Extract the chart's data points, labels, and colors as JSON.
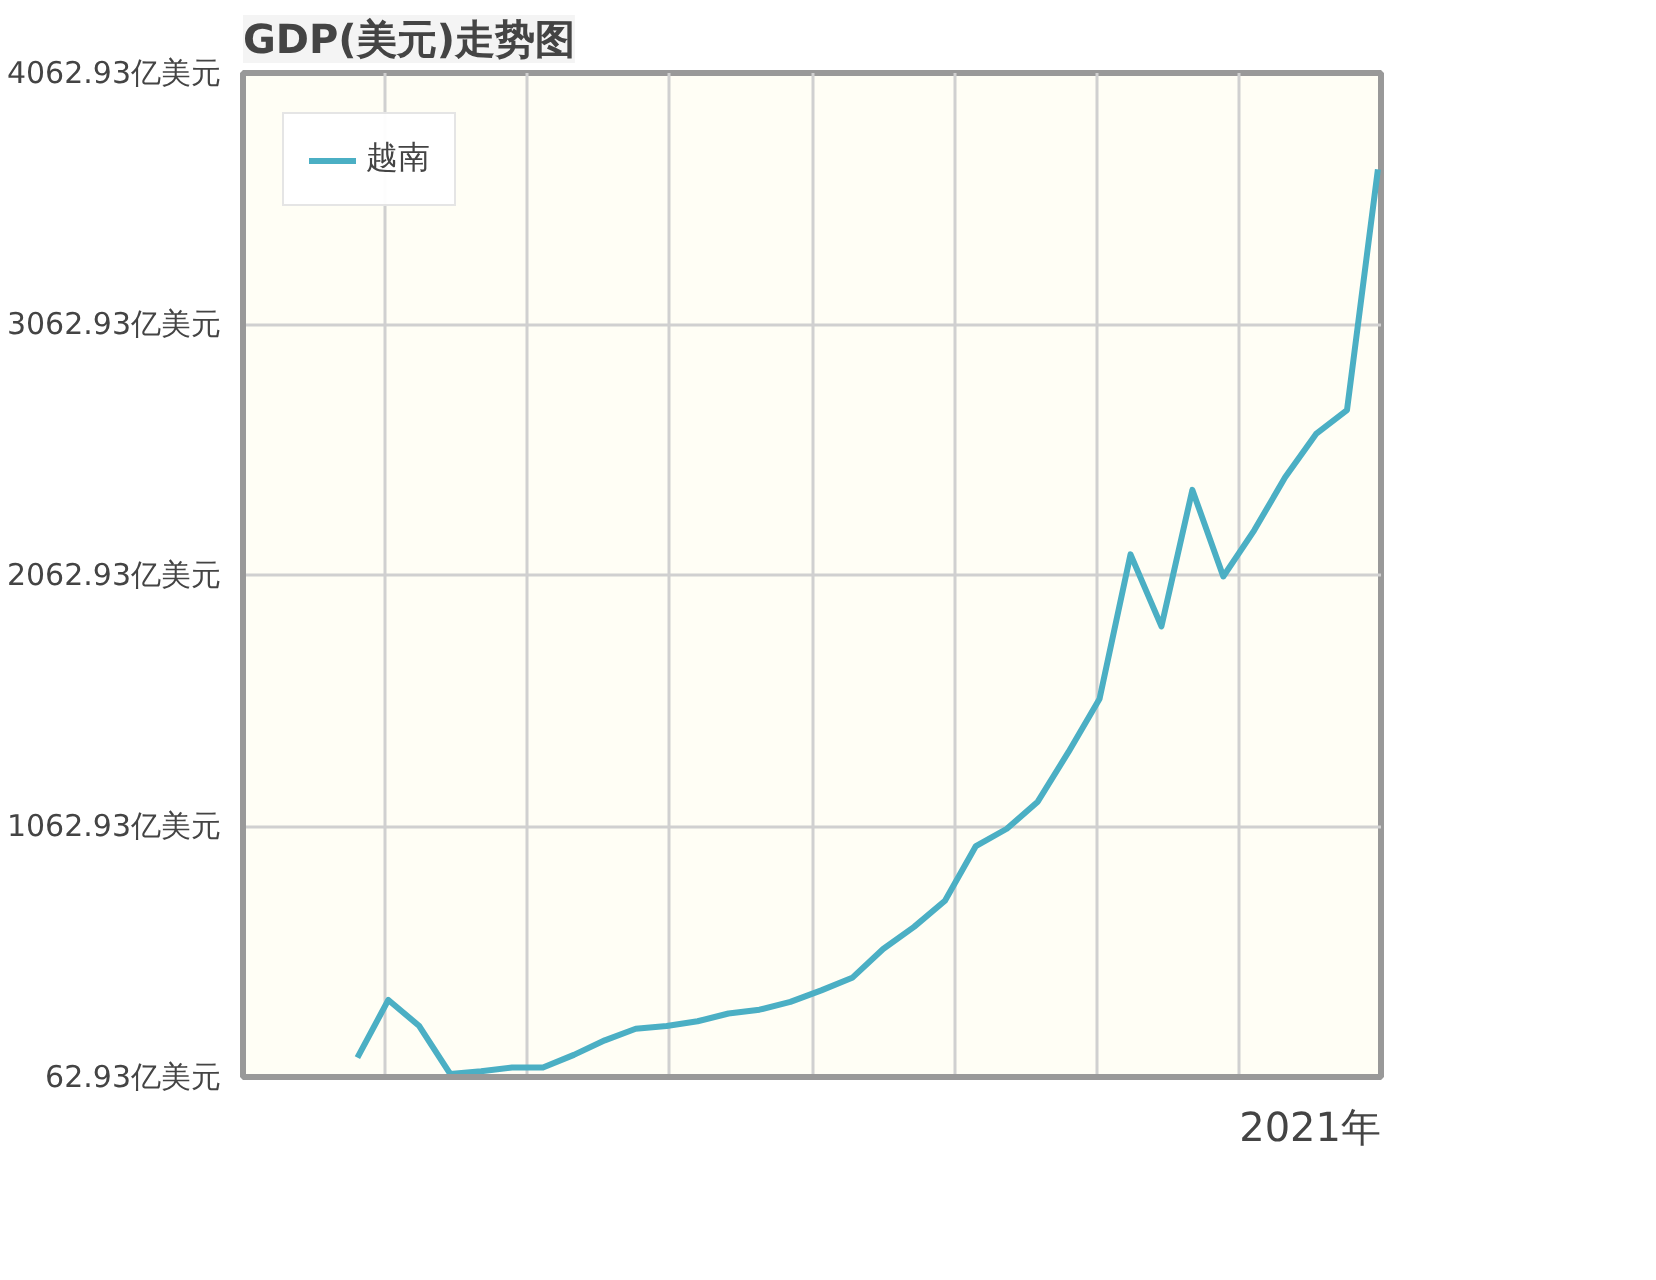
{
  "chart_data": {
    "type": "line",
    "title": "GDP(美元)走势图",
    "xlabel": "2021年",
    "categories": [
      null,
      null,
      null,
      null,
      null,
      null,
      null,
      null,
      null,
      null,
      null,
      null,
      null,
      null,
      null,
      null,
      null,
      null,
      null,
      null,
      null,
      null,
      null,
      null,
      null,
      null,
      null,
      null,
      null,
      null,
      null,
      null,
      null,
      null
    ],
    "series": [
      {
        "name": "越南",
        "color": "#4bafc4",
        "values": [
          140,
          370,
          266,
          75,
          86,
          101,
          101,
          151,
          209,
          255,
          266,
          285,
          316,
          331,
          362,
          408,
          458,
          573,
          661,
          765,
          983,
          1052,
          1160,
          1359,
          1570,
          2145,
          1858,
          2402,
          2057,
          2241,
          2452,
          2625,
          2720,
          3679
        ]
      }
    ],
    "ylim": [
      62.93,
      4062.93
    ],
    "yticks": [
      {
        "value": 62.93,
        "label": "62.93亿美元"
      },
      {
        "value": 1062.93,
        "label": "1062.93亿美元"
      },
      {
        "value": 2062.93,
        "label": "2062.93亿美元"
      },
      {
        "value": 3062.93,
        "label": "3062.93亿美元"
      },
      {
        "value": 4062.93,
        "label": "4062.93亿美元"
      }
    ],
    "grid": true,
    "legend": "top left",
    "marker": "none",
    "line_style": "solid"
  }
}
